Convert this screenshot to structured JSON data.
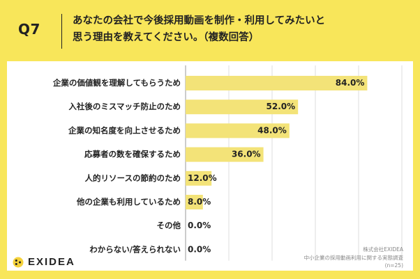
{
  "header": {
    "q_number": "Q7",
    "title_line1": "あなたの会社で今後採用動画を制作・利用してみたいと",
    "title_line2": "思う理由を教えてください。（複数回答）"
  },
  "colors": {
    "background": "#F8E65A",
    "bar": "#F3E378",
    "grid": "#DDDDDD",
    "axis": "#999999"
  },
  "chart_data": {
    "type": "bar",
    "orientation": "horizontal",
    "categories": [
      "企業の価値観を理解してもらうため",
      "入社後のミスマッチ防止のため",
      "企業の知名度を向上させるため",
      "応募者の数を確保するため",
      "人的リソースの節約のため",
      "他の企業も利用しているため",
      "その他",
      "わからない/答えられない"
    ],
    "values": [
      84.0,
      52.0,
      48.0,
      36.0,
      12.0,
      8.0,
      0.0,
      0.0
    ],
    "value_labels": [
      "84.0%",
      "52.0%",
      "48.0%",
      "36.0%",
      "12.0%",
      "8.0%",
      "0.0%",
      "0.0%"
    ],
    "xlim": [
      0,
      100
    ],
    "unit": "%",
    "grid": true
  },
  "footer": {
    "logo_text": "EXIDEA",
    "source_line1": "株式会社EXIDEA",
    "source_line2": "中小企業の採用動画利用に関する実態調査",
    "source_line3": "(n=25)"
  }
}
